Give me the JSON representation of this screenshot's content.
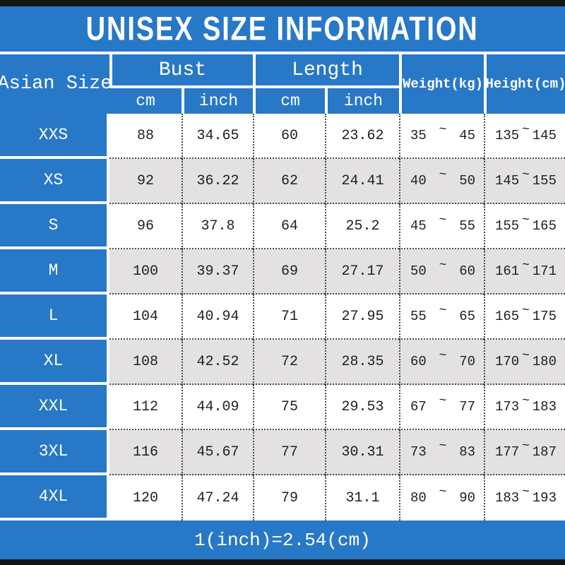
{
  "title": "UNISEX SIZE INFORMATION",
  "footer_note": "1(inch)=2.54(cm)",
  "colors": {
    "accent_blue": "#2878c8",
    "row_alt_gray": "#e3e1e1",
    "bar_black": "#141414",
    "text_dark": "#1f1f1f",
    "text_light": "#ffffff"
  },
  "table": {
    "tilde": "~",
    "size_header": "Asian Size",
    "groups": [
      {
        "label": "Bust",
        "units": [
          "cm",
          "inch"
        ]
      },
      {
        "label": "Length",
        "units": [
          "cm",
          "inch"
        ]
      }
    ],
    "weight_header": "Weight(kg)",
    "height_header": "Height(cm)",
    "rows": [
      {
        "size": "XXS",
        "bust_cm": "88",
        "bust_inch": "34.65",
        "len_cm": "60",
        "len_inch": "23.62",
        "weight_min": "35",
        "weight_max": "45",
        "height_min": "135",
        "height_max": "145"
      },
      {
        "size": "XS",
        "bust_cm": "92",
        "bust_inch": "36.22",
        "len_cm": "62",
        "len_inch": "24.41",
        "weight_min": "40",
        "weight_max": "50",
        "height_min": "145",
        "height_max": "155"
      },
      {
        "size": "S",
        "bust_cm": "96",
        "bust_inch": "37.8",
        "len_cm": "64",
        "len_inch": "25.2",
        "weight_min": "45",
        "weight_max": "55",
        "height_min": "155",
        "height_max": "165"
      },
      {
        "size": "M",
        "bust_cm": "100",
        "bust_inch": "39.37",
        "len_cm": "69",
        "len_inch": "27.17",
        "weight_min": "50",
        "weight_max": "60",
        "height_min": "161",
        "height_max": "171"
      },
      {
        "size": "L",
        "bust_cm": "104",
        "bust_inch": "40.94",
        "len_cm": "71",
        "len_inch": "27.95",
        "weight_min": "55",
        "weight_max": "65",
        "height_min": "165",
        "height_max": "175"
      },
      {
        "size": "XL",
        "bust_cm": "108",
        "bust_inch": "42.52",
        "len_cm": "72",
        "len_inch": "28.35",
        "weight_min": "60",
        "weight_max": "70",
        "height_min": "170",
        "height_max": "180"
      },
      {
        "size": "XXL",
        "bust_cm": "112",
        "bust_inch": "44.09",
        "len_cm": "75",
        "len_inch": "29.53",
        "weight_min": "67",
        "weight_max": "77",
        "height_min": "173",
        "height_max": "183"
      },
      {
        "size": "3XL",
        "bust_cm": "116",
        "bust_inch": "45.67",
        "len_cm": "77",
        "len_inch": "30.31",
        "weight_min": "73",
        "weight_max": "83",
        "height_min": "177",
        "height_max": "187"
      },
      {
        "size": "4XL",
        "bust_cm": "120",
        "bust_inch": "47.24",
        "len_cm": "79",
        "len_inch": "31.1",
        "weight_min": "80",
        "weight_max": "90",
        "height_min": "183",
        "height_max": "193"
      }
    ]
  }
}
